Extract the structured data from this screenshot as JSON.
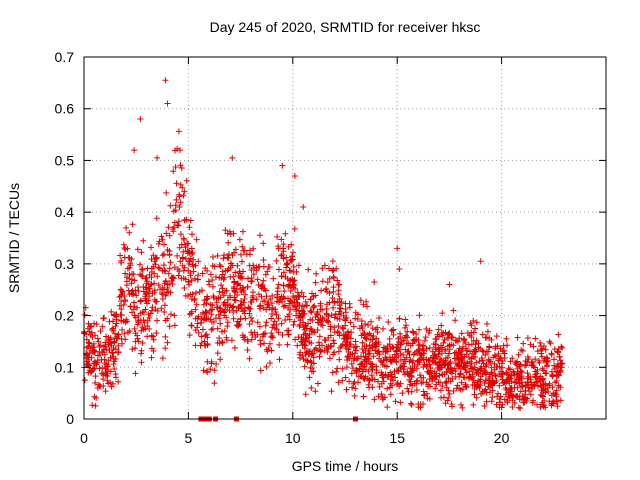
{
  "chart_data": {
    "type": "scatter",
    "title": "Day 245 of 2020, SRMTID for receiver hksc",
    "xlabel": "GPS time / hours",
    "ylabel": "SRMTID / TECUs",
    "xlim": [
      0,
      25
    ],
    "ylim": [
      0,
      0.7
    ],
    "grid": true,
    "x_ticks": [
      0,
      5,
      10,
      15,
      20
    ],
    "y_ticks": [
      0,
      0.1,
      0.2,
      0.3,
      0.4,
      0.5,
      0.6,
      0.7
    ],
    "x_tick_labels": [
      "0",
      "5",
      "10",
      "15",
      "20"
    ],
    "y_tick_labels": [
      "0",
      "0.1",
      "0.2",
      "0.3",
      "0.4",
      "0.5",
      "0.6",
      "0.7"
    ],
    "series": [
      {
        "name": "SRMTID",
        "marker": "+",
        "color": "#e00000",
        "profile": {
          "hours": [
            0.0,
            0.5,
            1.0,
            1.5,
            2.0,
            2.5,
            3.0,
            3.5,
            4.0,
            4.5,
            5.0,
            5.5,
            6.0,
            6.5,
            7.0,
            7.5,
            8.0,
            8.5,
            9.0,
            9.5,
            10.0,
            10.5,
            11.0,
            11.5,
            12.0,
            12.5,
            13.0,
            14.0,
            15.0,
            16.0,
            17.0,
            18.0,
            19.0,
            20.0,
            21.0,
            22.0,
            22.9
          ],
          "typical_tecu": [
            0.13,
            0.11,
            0.12,
            0.15,
            0.28,
            0.22,
            0.23,
            0.25,
            0.28,
            0.42,
            0.3,
            0.2,
            0.2,
            0.21,
            0.26,
            0.24,
            0.24,
            0.22,
            0.2,
            0.26,
            0.26,
            0.15,
            0.17,
            0.2,
            0.2,
            0.15,
            0.13,
            0.12,
            0.12,
            0.11,
            0.11,
            0.11,
            0.1,
            0.08,
            0.07,
            0.08,
            0.09
          ]
        },
        "outliers": [
          {
            "x": 3.9,
            "y": 0.655
          },
          {
            "x": 4.0,
            "y": 0.61
          },
          {
            "x": 4.6,
            "y": 0.52
          },
          {
            "x": 3.5,
            "y": 0.505
          },
          {
            "x": 2.4,
            "y": 0.52
          },
          {
            "x": 2.7,
            "y": 0.58
          },
          {
            "x": 7.1,
            "y": 0.505
          },
          {
            "x": 9.5,
            "y": 0.49
          },
          {
            "x": 10.1,
            "y": 0.47
          },
          {
            "x": 10.5,
            "y": 0.41
          },
          {
            "x": 15.0,
            "y": 0.33
          },
          {
            "x": 19.0,
            "y": 0.305
          },
          {
            "x": 15.1,
            "y": 0.29
          },
          {
            "x": 13.9,
            "y": 0.265
          },
          {
            "x": 17.5,
            "y": 0.26
          }
        ]
      }
    ],
    "zero_value_markers": [
      5.6,
      5.8,
      6.0,
      6.3,
      7.3,
      13.0
    ]
  }
}
